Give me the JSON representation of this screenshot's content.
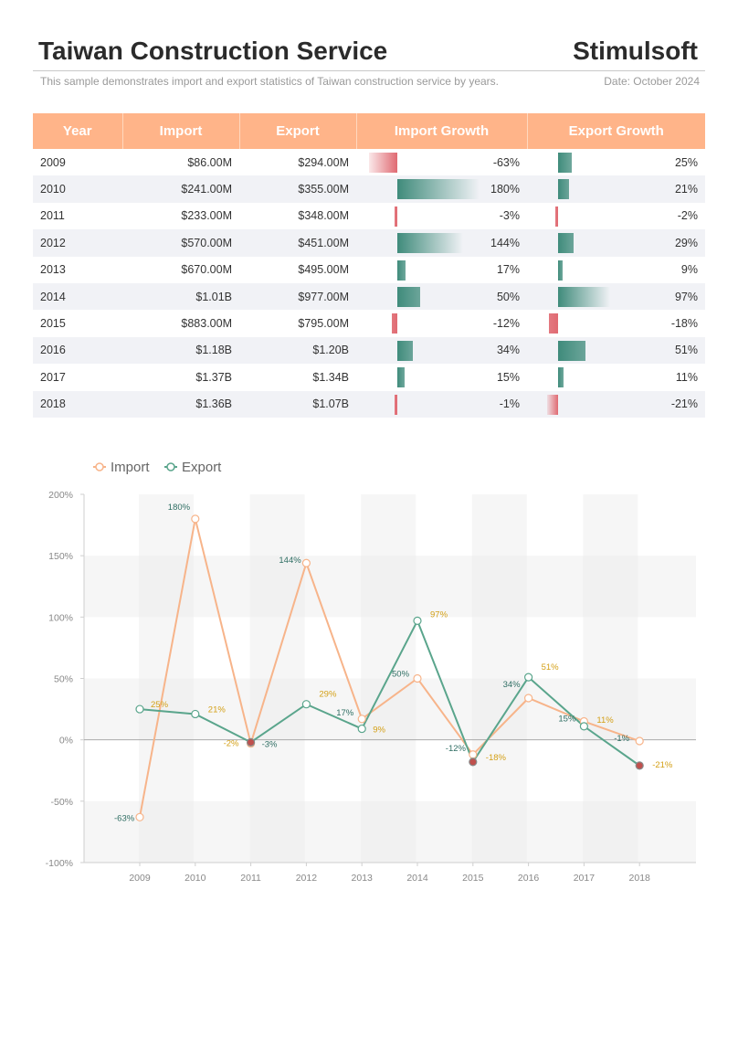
{
  "header": {
    "title": "Taiwan Construction Service",
    "brand": "Stimulsoft",
    "subtitle": "This sample demonstrates import and export statistics of Taiwan construction service by years.",
    "date": "Date: October 2024"
  },
  "table": {
    "columns": [
      "Year",
      "Import",
      "Export",
      "Import Growth",
      "Export Growth"
    ],
    "rows": [
      {
        "year": "2009",
        "import": "$86.00M",
        "export": "$294.00M",
        "import_growth": "-63%",
        "export_growth": "25%",
        "ig": -63,
        "eg": 25
      },
      {
        "year": "2010",
        "import": "$241.00M",
        "export": "$355.00M",
        "import_growth": "180%",
        "export_growth": "21%",
        "ig": 180,
        "eg": 21
      },
      {
        "year": "2011",
        "import": "$233.00M",
        "export": "$348.00M",
        "import_growth": "-3%",
        "export_growth": "-2%",
        "ig": -3,
        "eg": -2
      },
      {
        "year": "2012",
        "import": "$570.00M",
        "export": "$451.00M",
        "import_growth": "144%",
        "export_growth": "29%",
        "ig": 144,
        "eg": 29
      },
      {
        "year": "2013",
        "import": "$670.00M",
        "export": "$495.00M",
        "import_growth": "17%",
        "export_growth": "9%",
        "ig": 17,
        "eg": 9
      },
      {
        "year": "2014",
        "import": "$1.01B",
        "export": "$977.00M",
        "import_growth": "50%",
        "export_growth": "97%",
        "ig": 50,
        "eg": 97
      },
      {
        "year": "2015",
        "import": "$883.00M",
        "export": "$795.00M",
        "import_growth": "-12%",
        "export_growth": "-18%",
        "ig": -12,
        "eg": -18
      },
      {
        "year": "2016",
        "import": "$1.18B",
        "export": "$1.20B",
        "import_growth": "34%",
        "export_growth": "51%",
        "ig": 34,
        "eg": 51
      },
      {
        "year": "2017",
        "import": "$1.37B",
        "export": "$1.34B",
        "import_growth": "15%",
        "export_growth": "11%",
        "ig": 15,
        "eg": 11
      },
      {
        "year": "2018",
        "import": "$1.36B",
        "export": "$1.07B",
        "import_growth": "-1%",
        "export_growth": "-21%",
        "ig": -1,
        "eg": -21
      }
    ]
  },
  "colors": {
    "import": "#f7b48a",
    "export": "#5aa58c",
    "positive_bar": "#3f8b7b",
    "negative_bar": "#e06a72",
    "negative_marker": "#c0504d",
    "label_import": "#d4a017",
    "label_export": "#2f6e63"
  },
  "chart_data": {
    "type": "line",
    "categories": [
      "2009",
      "2010",
      "2011",
      "2012",
      "2013",
      "2014",
      "2015",
      "2016",
      "2017",
      "2018"
    ],
    "series": [
      {
        "name": "Import",
        "values": [
          -63,
          180,
          -3,
          144,
          17,
          50,
          -12,
          34,
          15,
          -1
        ],
        "labels": [
          "-63%",
          "180%",
          "-3%",
          "144%",
          "17%",
          "50%",
          "-12%",
          "34%",
          "15%",
          "-1%"
        ]
      },
      {
        "name": "Export",
        "values": [
          25,
          21,
          -2,
          29,
          9,
          97,
          -18,
          51,
          11,
          -21
        ],
        "labels": [
          "25%",
          "21%",
          "-2%",
          "29%",
          "9%",
          "97%",
          "-18%",
          "51%",
          "11%",
          "-21%"
        ]
      }
    ],
    "ylim": [
      -100,
      200
    ],
    "yticks": [
      "-100%",
      "-50%",
      "0%",
      "50%",
      "100%",
      "150%",
      "200%"
    ],
    "legend": [
      "Import",
      "Export"
    ]
  }
}
